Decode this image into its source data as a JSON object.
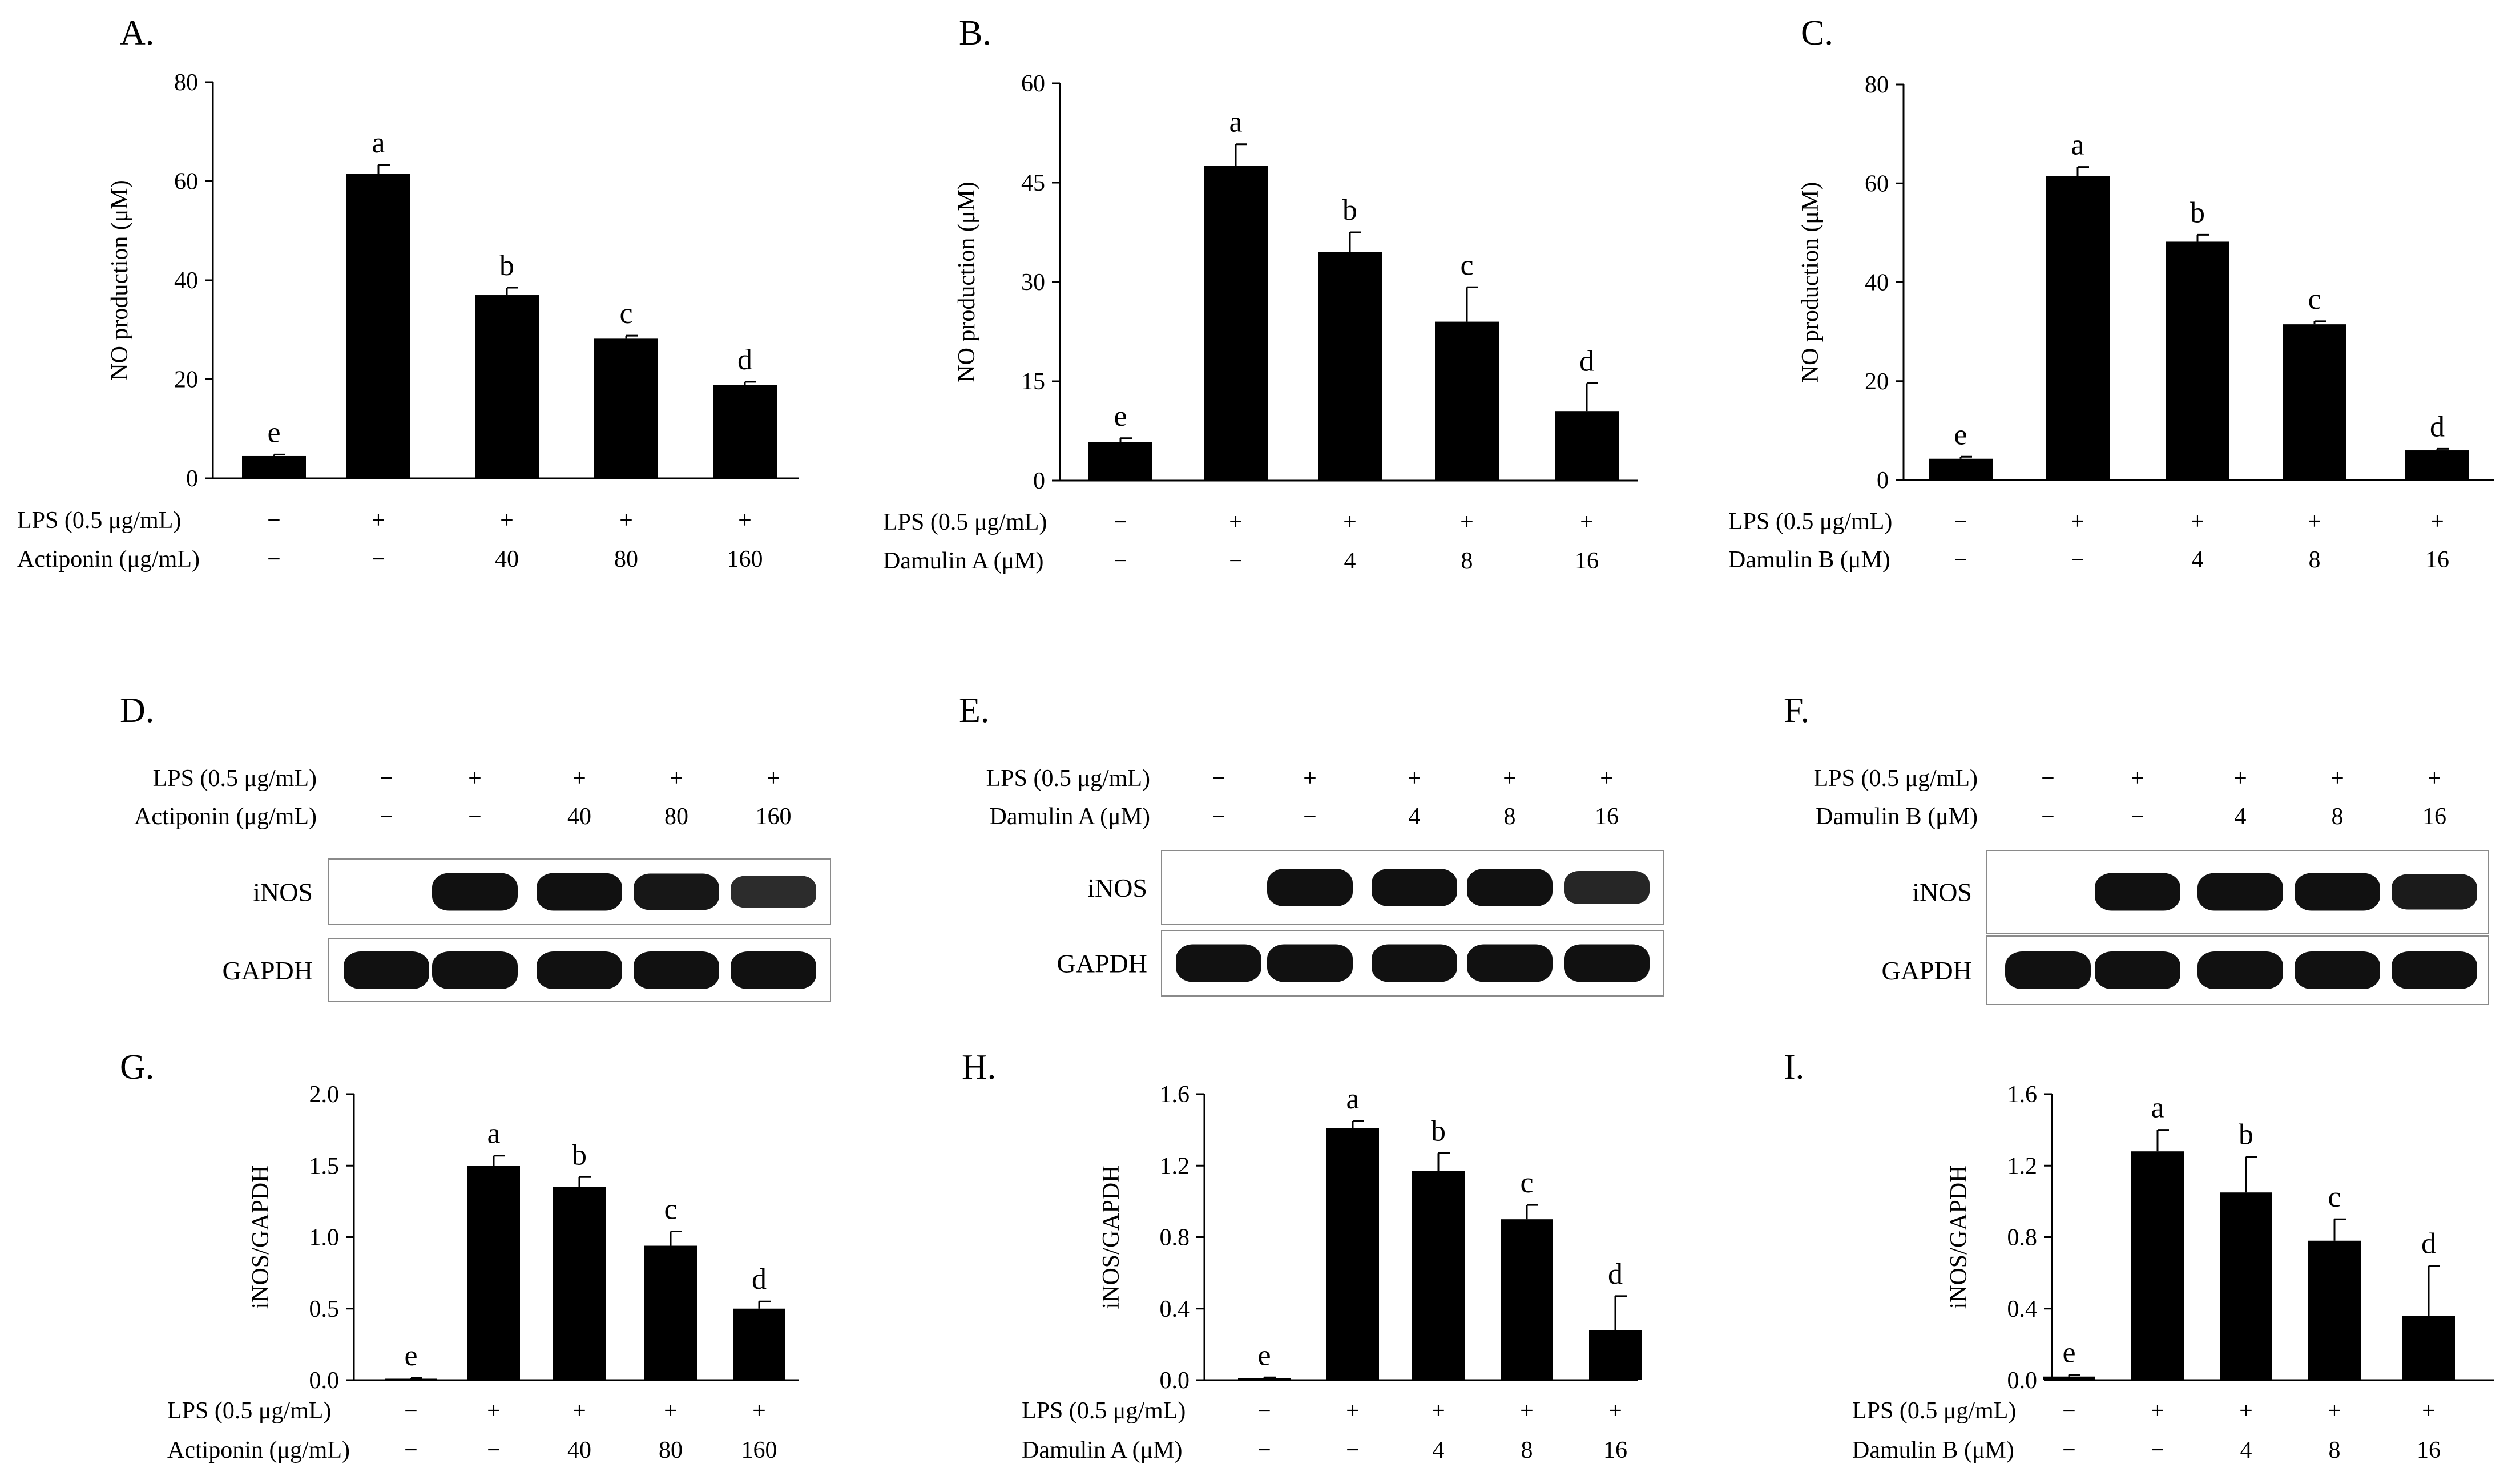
{
  "figure": {
    "chart_data": [
      {
        "id": "A",
        "type": "bar",
        "panel_label": "A.",
        "ylabel": "NO production (μM)",
        "ylim": [
          0,
          80
        ],
        "yticks": [
          "0",
          "20",
          "40",
          "60",
          "80"
        ],
        "values": [
          4.5,
          61.5,
          37.0,
          28.2,
          18.8
        ],
        "errors": [
          0.3,
          1.8,
          1.5,
          0.6,
          0.7
        ],
        "letters": [
          "e",
          "a",
          "b",
          "c",
          "d"
        ],
        "treatments": [
          {
            "label": "LPS (0.5 μg/mL)",
            "values": [
              "−",
              "+",
              "+",
              "+",
              "+"
            ]
          },
          {
            "label": "Actiponin (μg/mL)",
            "values": [
              "−",
              "−",
              "40",
              "80",
              "160"
            ]
          }
        ]
      },
      {
        "id": "B",
        "type": "bar",
        "panel_label": "B.",
        "ylabel": "NO production (μM)",
        "ylim": [
          0,
          60
        ],
        "yticks": [
          "0",
          "15",
          "30",
          "45",
          "60"
        ],
        "values": [
          5.8,
          47.5,
          34.5,
          24.0,
          10.5
        ],
        "errors": [
          0.6,
          3.3,
          3.0,
          5.2,
          4.2
        ],
        "letters": [
          "e",
          "a",
          "b",
          "c",
          "d"
        ],
        "treatments": [
          {
            "label": "LPS (0.5 μg/mL)",
            "values": [
              "−",
              "+",
              "+",
              "+",
              "+"
            ]
          },
          {
            "label": "Damulin A (μM)",
            "values": [
              "−",
              "−",
              "4",
              "8",
              "16"
            ]
          }
        ]
      },
      {
        "id": "C",
        "type": "bar",
        "panel_label": "C.",
        "ylabel": "NO production (μM)",
        "ylim": [
          0,
          80
        ],
        "yticks": [
          "0",
          "20",
          "40",
          "60",
          "80"
        ],
        "values": [
          4.3,
          61.5,
          48.2,
          31.5,
          6.0
        ],
        "errors": [
          0.4,
          1.8,
          1.4,
          0.6,
          0.3
        ],
        "letters": [
          "e",
          "a",
          "b",
          "c",
          "d"
        ],
        "treatments": [
          {
            "label": "LPS (0.5 μg/mL)",
            "values": [
              "−",
              "+",
              "+",
              "+",
              "+"
            ]
          },
          {
            "label": "Damulin B (μM)",
            "values": [
              "−",
              "−",
              "4",
              "8",
              "16"
            ]
          }
        ]
      },
      {
        "id": "G",
        "type": "bar",
        "panel_label": "G.",
        "ylabel": "iNOS/GAPDH",
        "ylim": [
          0,
          2.0
        ],
        "yticks": [
          "0.0",
          "0.5",
          "1.0",
          "1.5",
          "2.0"
        ],
        "values": [
          0.01,
          1.5,
          1.35,
          0.94,
          0.5
        ],
        "errors": [
          0.005,
          0.07,
          0.07,
          0.1,
          0.05
        ],
        "letters": [
          "e",
          "a",
          "b",
          "c",
          "d"
        ],
        "treatments": [
          {
            "label": "LPS (0.5 μg/mL)",
            "values": [
              "−",
              "+",
              "+",
              "+",
              "+"
            ]
          },
          {
            "label": "Actiponin (μg/mL)",
            "values": [
              "−",
              "−",
              "40",
              "80",
              "160"
            ]
          }
        ]
      },
      {
        "id": "H",
        "type": "bar",
        "panel_label": "H.",
        "ylabel": "iNOS/GAPDH",
        "ylim": [
          0,
          1.6
        ],
        "yticks": [
          "0.0",
          "0.4",
          "0.8",
          "1.2",
          "1.6"
        ],
        "values": [
          0.01,
          1.41,
          1.17,
          0.9,
          0.28
        ],
        "errors": [
          0.005,
          0.04,
          0.1,
          0.08,
          0.19
        ],
        "letters": [
          "e",
          "a",
          "b",
          "c",
          "d"
        ],
        "treatments": [
          {
            "label": "LPS (0.5 μg/mL)",
            "values": [
              "−",
              "+",
              "+",
              "+",
              "+"
            ]
          },
          {
            "label": "Damulin A (μM)",
            "values": [
              "−",
              "−",
              "4",
              "8",
              "16"
            ]
          }
        ]
      },
      {
        "id": "I",
        "type": "bar",
        "panel_label": "I.",
        "ylabel": "iNOS/GAPDH",
        "ylim": [
          0,
          1.6
        ],
        "yticks": [
          "0.0",
          "0.4",
          "0.8",
          "1.2",
          "1.6"
        ],
        "values": [
          0.02,
          1.28,
          1.05,
          0.78,
          0.36
        ],
        "errors": [
          0.01,
          0.12,
          0.2,
          0.12,
          0.28
        ],
        "letters": [
          "e",
          "a",
          "b",
          "c",
          "d"
        ],
        "treatments": [
          {
            "label": "LPS (0.5 μg/mL)",
            "values": [
              "−",
              "+",
              "+",
              "+",
              "+"
            ]
          },
          {
            "label": "Damulin B (μM)",
            "values": [
              "−",
              "−",
              "4",
              "8",
              "16"
            ]
          }
        ]
      }
    ],
    "blots": [
      {
        "id": "D",
        "panel_label": "D.",
        "treatments": [
          {
            "label": "LPS (0.5 μg/mL)",
            "values": [
              "−",
              "+",
              "+",
              "+",
              "+"
            ]
          },
          {
            "label": "Actiponin (μg/mL)",
            "values": [
              "−",
              "−",
              "40",
              "80",
              "160"
            ]
          }
        ],
        "rows": [
          {
            "label": "iNOS",
            "intensity": [
              0,
              1,
              1,
              0.95,
              0.75
            ]
          },
          {
            "label": "GAPDH",
            "intensity": [
              1,
              1,
              1,
              1,
              1
            ]
          }
        ]
      },
      {
        "id": "E",
        "panel_label": "E.",
        "treatments": [
          {
            "label": "LPS (0.5 μg/mL)",
            "values": [
              "−",
              "+",
              "+",
              "+",
              "+"
            ]
          },
          {
            "label": "Damulin A (μM)",
            "values": [
              "−",
              "−",
              "4",
              "8",
              "16"
            ]
          }
        ],
        "rows": [
          {
            "label": "iNOS",
            "intensity": [
              0,
              1,
              1,
              1,
              0.8
            ]
          },
          {
            "label": "GAPDH",
            "intensity": [
              1,
              1,
              1,
              1,
              1
            ]
          }
        ]
      },
      {
        "id": "F",
        "panel_label": "F.",
        "treatments": [
          {
            "label": "LPS (0.5 μg/mL)",
            "values": [
              "−",
              "+",
              "+",
              "+",
              "+"
            ]
          },
          {
            "label": "Damulin B (μM)",
            "values": [
              "−",
              "−",
              "4",
              "8",
              "16"
            ]
          }
        ],
        "rows": [
          {
            "label": "iNOS",
            "intensity": [
              0,
              1,
              1,
              1,
              0.9
            ]
          },
          {
            "label": "GAPDH",
            "intensity": [
              1,
              1,
              1,
              1,
              1
            ]
          }
        ]
      }
    ]
  }
}
